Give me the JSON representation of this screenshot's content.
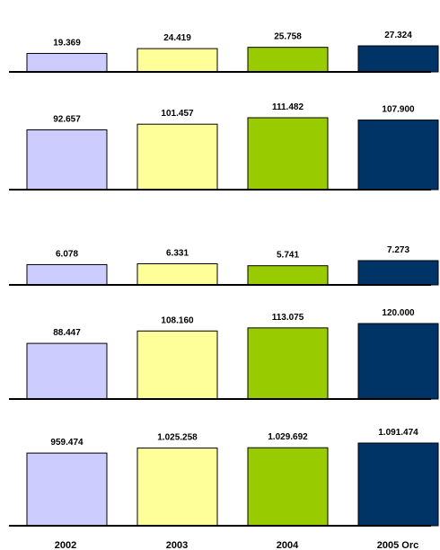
{
  "chart_data": [
    {
      "type": "bar",
      "categories": [
        "2002",
        "2003",
        "2004",
        "2005 Orc"
      ],
      "values": [
        19.369,
        24.419,
        25.758,
        27.324
      ],
      "value_labels": [
        "19.369",
        "24.419",
        "25.758",
        "27.324"
      ]
    },
    {
      "type": "bar",
      "categories": [
        "2002",
        "2003",
        "2004",
        "2005 Orc"
      ],
      "values": [
        92.657,
        101.457,
        111.482,
        107.9
      ],
      "value_labels": [
        "92.657",
        "101.457",
        "111.482",
        "107.900"
      ]
    },
    {
      "type": "bar",
      "categories": [
        "2002",
        "2003",
        "2004",
        "2005 Orc"
      ],
      "values": [
        6.078,
        6.331,
        5.741,
        7.273
      ],
      "value_labels": [
        "6.078",
        "6.331",
        "5.741",
        "7.273"
      ]
    },
    {
      "type": "bar",
      "categories": [
        "2002",
        "2003",
        "2004",
        "2005 Orc"
      ],
      "values": [
        88.447,
        108.16,
        113.075,
        120.0
      ],
      "value_labels": [
        "88.447",
        "108.160",
        "113.075",
        "120.000"
      ]
    },
    {
      "type": "bar",
      "categories": [
        "2002",
        "2003",
        "2004",
        "2005 Orc"
      ],
      "values": [
        959474,
        1025258,
        1029692,
        1091474
      ],
      "value_labels": [
        "959.474",
        "1.025.258",
        "1.029.692",
        "1.091.474"
      ]
    }
  ],
  "bar_colors": [
    "#ccccff",
    "#ffff99",
    "#99cc00",
    "#003366"
  ],
  "x_labels": [
    "2002",
    "2003",
    "2004",
    "2005 Orc"
  ]
}
